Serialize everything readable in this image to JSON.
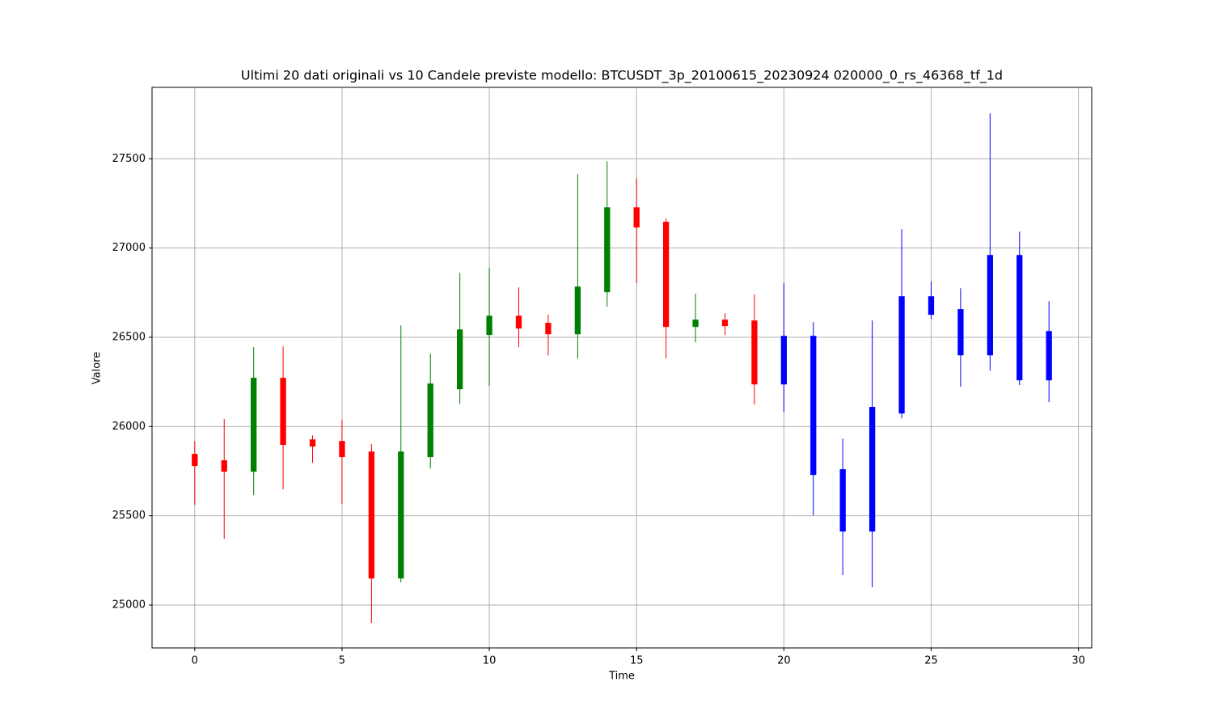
{
  "chart_data": {
    "type": "candlestick",
    "title": "Ultimi 20 dati originali vs 10 Candele previste modello: BTCUSDT_3p_20100615_20230924 020000_0_rs_46368_tf_1d",
    "x_label": "Time",
    "y_label": "Valore",
    "x": [
      0,
      1,
      2,
      3,
      4,
      5,
      6,
      7,
      8,
      9,
      10,
      11,
      12,
      13,
      14,
      15,
      16,
      17,
      18,
      19,
      20,
      21,
      22,
      23,
      24,
      25,
      26,
      27,
      28,
      29
    ],
    "open": [
      25847,
      25811,
      25747,
      26273,
      25928,
      25919,
      25860,
      25149,
      25829,
      26209,
      26513,
      26621,
      26581,
      26517,
      26753,
      27228,
      27147,
      26558,
      26599,
      26594,
      26236,
      26508,
      25761,
      25412,
      26073,
      26730,
      26399,
      26399,
      26961,
      26259
    ],
    "high": [
      25919,
      26042,
      26445,
      26449,
      25951,
      26037,
      25901,
      26567,
      26409,
      26861,
      26889,
      26780,
      26626,
      27414,
      27486,
      27391,
      27165,
      26744,
      26635,
      26739,
      26803,
      26585,
      25933,
      26594,
      27106,
      26812,
      26775,
      27754,
      27092,
      26703
    ],
    "low": [
      25562,
      25371,
      25616,
      25648,
      25797,
      25566,
      24900,
      25127,
      25765,
      26128,
      26227,
      26445,
      26399,
      26381,
      26671,
      26803,
      26381,
      26472,
      26513,
      26123,
      26082,
      25503,
      25168,
      25100,
      26046,
      26603,
      26223,
      26313,
      26232,
      26137
    ],
    "close": [
      25779,
      25747,
      26273,
      25897,
      25888,
      25829,
      25149,
      25860,
      26241,
      26544,
      26621,
      26549,
      26517,
      26784,
      27228,
      27115,
      26558,
      26599,
      26563,
      26236,
      26508,
      25729,
      25412,
      26110,
      26730,
      26626,
      26658,
      26961,
      26259,
      26535
    ],
    "colors": [
      "red",
      "red",
      "green",
      "red",
      "red",
      "red",
      "red",
      "green",
      "green",
      "green",
      "green",
      "red",
      "red",
      "green",
      "green",
      "red",
      "red",
      "green",
      "red",
      "red",
      "blue",
      "blue",
      "blue",
      "blue",
      "blue",
      "blue",
      "blue",
      "blue",
      "blue",
      "blue"
    ],
    "xlim": [
      -1.45,
      30.45
    ],
    "ylim": [
      24760,
      27900
    ],
    "xticks": [
      0,
      5,
      10,
      15,
      20,
      25,
      30
    ],
    "yticks": [
      25000,
      25500,
      26000,
      26500,
      27000,
      27500
    ],
    "grid": true
  }
}
